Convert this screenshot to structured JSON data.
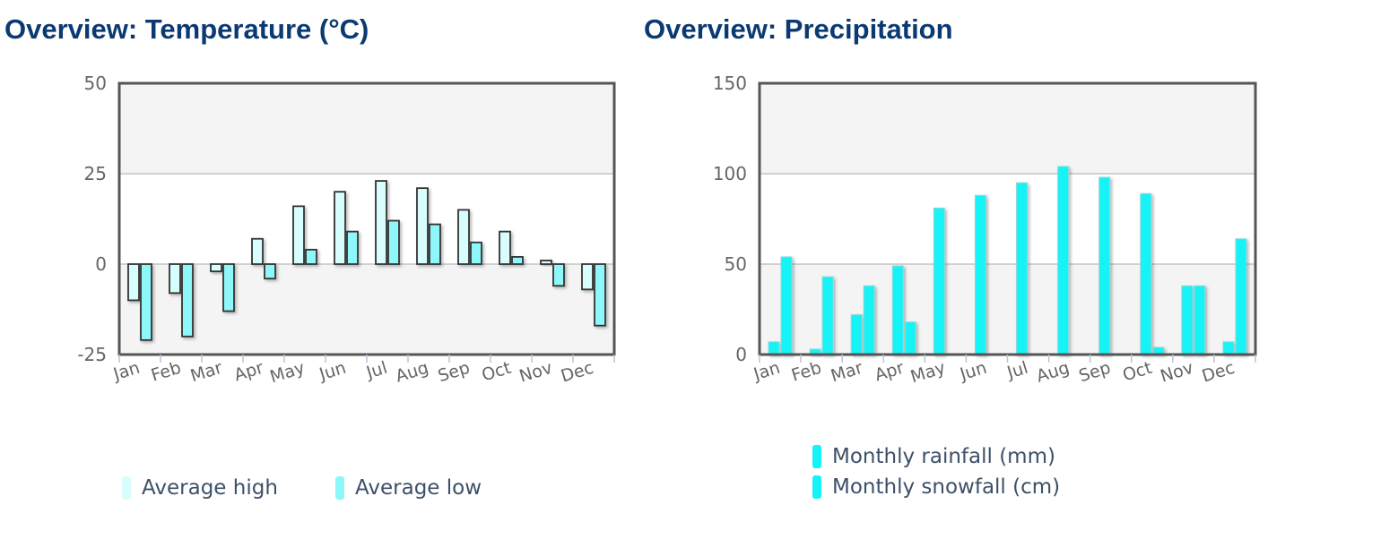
{
  "chart_data": [
    {
      "type": "bar",
      "title": "Overview: Temperature (°C)",
      "categories": [
        "Jan",
        "Feb",
        "Mar",
        "Apr",
        "May",
        "Jun",
        "Jul",
        "Aug",
        "Sep",
        "Oct",
        "Nov",
        "Dec"
      ],
      "series": [
        {
          "name": "Average high",
          "color": "#d8fdfd",
          "values": [
            -10,
            -8,
            -2,
            7,
            16,
            20,
            23,
            21,
            15,
            9,
            1,
            -7
          ]
        },
        {
          "name": "Average low",
          "color": "#8ef7f9",
          "values": [
            -21,
            -20,
            -13,
            -4,
            4,
            9,
            12,
            11,
            6,
            2,
            -6,
            -17
          ]
        }
      ],
      "ylim": [
        -25,
        50
      ],
      "yticks": [
        "-25",
        "0",
        "25",
        "50"
      ],
      "xlabel": "",
      "ylabel": "",
      "grid": true,
      "legend": "bottom"
    },
    {
      "type": "bar",
      "title": "Overview: Precipitation",
      "categories": [
        "Jan",
        "Feb",
        "Mar",
        "Apr",
        "May",
        "Jun",
        "Jul",
        "Aug",
        "Sep",
        "Oct",
        "Nov",
        "Dec"
      ],
      "series": [
        {
          "name": "Monthly rainfall (mm)",
          "color": "#16f3f6",
          "values": [
            7,
            3,
            22,
            49,
            81,
            88,
            95,
            104,
            98,
            89,
            38,
            7
          ]
        },
        {
          "name": "Monthly snowfall (cm)",
          "color": "#16f3f6",
          "values": [
            54,
            43,
            38,
            18,
            0,
            0,
            0,
            0,
            0,
            4,
            38,
            64
          ]
        }
      ],
      "ylim": [
        0,
        150
      ],
      "yticks": [
        "0",
        "50",
        "100",
        "150"
      ],
      "xlabel": "",
      "ylabel": "",
      "grid": true,
      "legend": "bottom"
    }
  ]
}
